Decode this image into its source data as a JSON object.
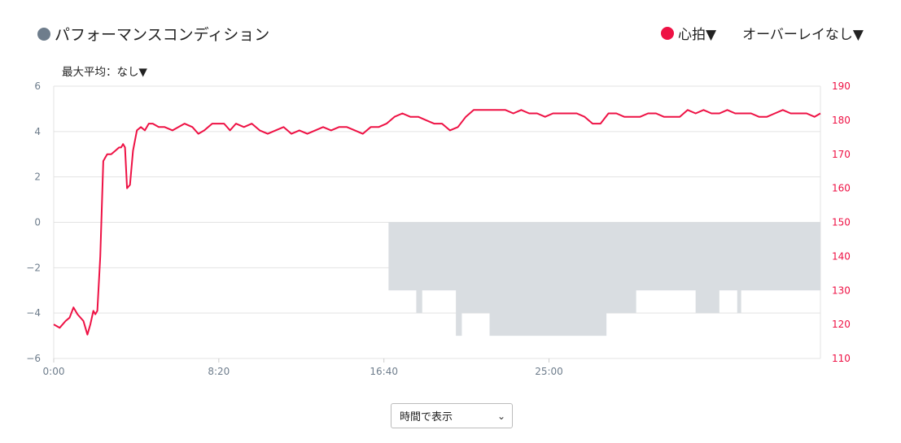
{
  "legend": {
    "performance_label": "パフォーマンスコンディション",
    "performance_color": "#6e7d8c",
    "hr_label": "心拍▼",
    "hr_color": "#ee1144",
    "overlay_label": "オーバーレイなし▼"
  },
  "max_avg_label": "最大平均：なし▼",
  "display_select": {
    "selected": "時間で表示"
  },
  "chart_data": {
    "type": "line",
    "title": "",
    "x_label": "",
    "x_unit": "minutes",
    "xlim": [
      0,
      38.7
    ],
    "x_ticks": [
      "0:00",
      "8:20",
      "16:40",
      "25:00"
    ],
    "x_tick_values": [
      0,
      8.333,
      16.667,
      25
    ],
    "left_axis": {
      "label": "",
      "ylim": [
        -6,
        6
      ],
      "ticks": [
        "6",
        "4",
        "2",
        "0",
        "−2",
        "−4",
        "−6"
      ],
      "tick_values": [
        6,
        4,
        2,
        0,
        -2,
        -4,
        -6
      ],
      "color": "#6e7d8c"
    },
    "right_axis": {
      "label": "",
      "ylim": [
        110,
        190
      ],
      "ticks": [
        "190",
        "180",
        "170",
        "160",
        "150",
        "140",
        "130",
        "120",
        "110"
      ],
      "tick_values": [
        190,
        180,
        170,
        160,
        150,
        140,
        130,
        120,
        110
      ],
      "color": "#ee1144"
    },
    "grid": true,
    "series": [
      {
        "name": "心拍",
        "axis": "right",
        "color": "#ee1144",
        "x": [
          0,
          0.3,
          0.6,
          0.8,
          1.0,
          1.2,
          1.5,
          1.7,
          1.85,
          2.0,
          2.1,
          2.2,
          2.35,
          2.5,
          2.7,
          2.9,
          3.1,
          3.3,
          3.4,
          3.5,
          3.6,
          3.7,
          3.85,
          4.0,
          4.2,
          4.4,
          4.6,
          4.8,
          5.0,
          5.3,
          5.6,
          6.0,
          6.3,
          6.6,
          7.0,
          7.3,
          7.6,
          8.0,
          8.3,
          8.6,
          8.9,
          9.2,
          9.6,
          10.0,
          10.4,
          10.8,
          11.2,
          11.6,
          12.0,
          12.4,
          12.8,
          13.2,
          13.6,
          14.0,
          14.4,
          14.8,
          15.2,
          15.6,
          16.0,
          16.4,
          16.8,
          17.2,
          17.6,
          18.0,
          18.4,
          18.8,
          19.2,
          19.6,
          20.0,
          20.4,
          20.8,
          21.2,
          21.6,
          22.0,
          22.4,
          22.8,
          23.2,
          23.6,
          24.0,
          24.4,
          24.8,
          25.2,
          25.6,
          26.0,
          26.4,
          26.8,
          27.2,
          27.6,
          28.0,
          28.4,
          28.8,
          29.2,
          29.6,
          30.0,
          30.4,
          30.8,
          31.2,
          31.6,
          32.0,
          32.4,
          32.8,
          33.2,
          33.6,
          34.0,
          34.4,
          34.8,
          35.2,
          35.6,
          36.0,
          36.4,
          36.8,
          37.2,
          37.6,
          38.0,
          38.4,
          38.7
        ],
        "values": [
          120,
          119,
          121,
          122,
          125,
          123,
          121,
          117,
          120,
          124,
          123,
          124,
          140,
          168,
          170,
          170,
          171,
          172,
          172,
          173,
          172,
          160,
          161,
          171,
          177,
          178,
          177,
          179,
          179,
          178,
          178,
          177,
          178,
          179,
          178,
          176,
          177,
          179,
          179,
          179,
          177,
          179,
          178,
          179,
          177,
          176,
          177,
          178,
          176,
          177,
          176,
          177,
          178,
          177,
          178,
          178,
          177,
          176,
          178,
          178,
          179,
          181,
          182,
          181,
          181,
          180,
          179,
          179,
          177,
          178,
          181,
          183,
          183,
          183,
          183,
          183,
          182,
          183,
          182,
          182,
          181,
          182,
          182,
          182,
          182,
          181,
          179,
          179,
          182,
          182,
          181,
          181,
          181,
          182,
          182,
          181,
          181,
          181,
          183,
          182,
          183,
          182,
          182,
          183,
          182,
          182,
          182,
          181,
          181,
          182,
          183,
          182,
          182,
          182,
          181,
          182
        ]
      },
      {
        "name": "パフォーマンスコンディション",
        "axis": "left",
        "color": "#d9dde1",
        "kind": "area",
        "x": [
          0,
          16.9,
          16.9,
          18.3,
          18.3,
          18.6,
          18.6,
          20.3,
          20.3,
          20.6,
          20.6,
          22.0,
          22.0,
          27.9,
          27.9,
          29.4,
          29.4,
          32.4,
          32.4,
          33.6,
          33.6,
          34.5,
          34.5,
          34.7,
          34.7,
          35.0,
          35.0,
          38.7
        ],
        "values": [
          0,
          0,
          -3,
          -3,
          -4,
          -4,
          -3,
          -3,
          -5,
          -5,
          -4,
          -4,
          -5,
          -5,
          -4,
          -4,
          -3,
          -3,
          -4,
          -4,
          -3,
          -3,
          -4,
          -4,
          -3,
          -3,
          -3,
          -3
        ]
      }
    ]
  }
}
